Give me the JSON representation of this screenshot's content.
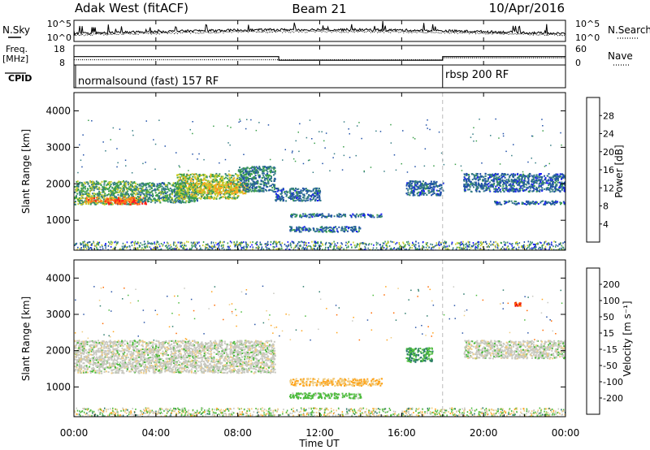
{
  "header": {
    "title": "Adak West (fitACF)",
    "beam": "Beam 21",
    "date": "10/Apr/2016"
  },
  "nsky_panel": {
    "left_label": "N.Sky",
    "right_label": "N.Search",
    "left_ticks": [
      "10^5",
      "10^0"
    ],
    "right_ticks": [
      "10^5",
      "10^0"
    ]
  },
  "freq_panel": {
    "left_label_1": "Freq.",
    "left_label_2": "[MHz]",
    "right_label": "Nave",
    "left_ticks": [
      "18",
      "8"
    ],
    "right_ticks": [
      "60",
      "0"
    ],
    "freq_steps": [
      {
        "t0": 0,
        "t1": 10,
        "value": 12.3
      },
      {
        "t0": 10,
        "t1": 18,
        "value": 10.4
      },
      {
        "t0": 18,
        "t1": 24,
        "value": 12.3
      }
    ],
    "nave_steps": [
      {
        "t0": 0,
        "t1": 18,
        "value": 16
      },
      {
        "t0": 18,
        "t1": 24,
        "value": 22
      }
    ]
  },
  "cpid_panel": {
    "label": "CPID",
    "segments": [
      {
        "start_hour": 0,
        "text": "normalsound (fast) 157 RF"
      },
      {
        "start_hour": 18,
        "text": "rbsp 200 RF"
      }
    ]
  },
  "power_panel": {
    "ylabel": "Slant Range [km]",
    "yticks": [
      1000,
      2000,
      3000,
      4000
    ],
    "cbar_label": "Power [dB]",
    "cbar_ticks": [
      "4",
      "8",
      "12",
      "16",
      "20",
      "24",
      "28"
    ],
    "cbar_colors": [
      "#1a1aff",
      "#1f4fa8",
      "#357d84",
      "#3b9f4a",
      "#c8cc2a",
      "#ffa51f",
      "#ff6f1a",
      "#ff1a1a"
    ]
  },
  "velocity_panel": {
    "ylabel": "Slant Range [km]",
    "yticks": [
      1000,
      2000,
      3000,
      4000
    ],
    "cbar_label": "Velocity [m s⁻¹]",
    "cbar_ticks": [
      "-200",
      "-100",
      "-50",
      "-15",
      "15",
      "50",
      "100",
      "200"
    ],
    "cbar_colors": [
      "#e60000",
      "#ff6a00",
      "#ffa31a",
      "#f0cc80",
      "#c8c8c0",
      "#4cbb3c",
      "#2a7a6a",
      "#2a55a8",
      "#2233bb"
    ]
  },
  "x_axis": {
    "label": "Time UT",
    "ticks": [
      "00:00",
      "04:00",
      "08:00",
      "12:00",
      "16:00",
      "20:00",
      "00:00"
    ]
  },
  "chart_data": {
    "type": "heatmap",
    "x_range_hours": [
      0,
      24
    ],
    "y_range_km": [
      180,
      4500
    ],
    "power_blobs": [
      {
        "t0": 0,
        "t1": 3,
        "r0": 1450,
        "r1": 2100,
        "value": 14
      },
      {
        "t0": 0.5,
        "t1": 3.5,
        "r0": 1500,
        "r1": 1650,
        "value": 24
      },
      {
        "t0": 1.5,
        "t1": 3.5,
        "r0": 1450,
        "r1": 1580,
        "value": 28
      },
      {
        "t0": 3,
        "t1": 6,
        "r0": 1500,
        "r1": 2050,
        "value": 12
      },
      {
        "t0": 5,
        "t1": 8,
        "r0": 1600,
        "r1": 2300,
        "value": 16
      },
      {
        "t0": 6,
        "t1": 8.5,
        "r0": 1750,
        "r1": 2050,
        "value": 20
      },
      {
        "t0": 8,
        "t1": 9.8,
        "r0": 1800,
        "r1": 2500,
        "value": 10
      },
      {
        "t0": 9.8,
        "t1": 12,
        "r0": 1550,
        "r1": 1900,
        "value": 8
      },
      {
        "t0": 10.5,
        "t1": 15,
        "r0": 1100,
        "r1": 1200,
        "value": 8
      },
      {
        "t0": 10.5,
        "t1": 14,
        "r0": 700,
        "r1": 850,
        "value": 8
      },
      {
        "t0": 16.2,
        "t1": 18,
        "r0": 1700,
        "r1": 2100,
        "value": 8
      },
      {
        "t0": 19,
        "t1": 24,
        "r0": 1800,
        "r1": 2300,
        "value": 8
      },
      {
        "t0": 20.5,
        "t1": 24,
        "r0": 1450,
        "r1": 1550,
        "value": 8
      }
    ],
    "velocity_blobs": [
      {
        "t0": 0,
        "t1": 9.8,
        "r0": 1400,
        "r1": 2300,
        "value": 0
      },
      {
        "t0": 10.5,
        "t1": 15,
        "r0": 1050,
        "r1": 1250,
        "value": -50
      },
      {
        "t0": 10.5,
        "t1": 14,
        "r0": 700,
        "r1": 850,
        "value": 30
      },
      {
        "t0": 16.2,
        "t1": 17.5,
        "r0": 1700,
        "r1": 2100,
        "value": 50
      },
      {
        "t0": 19,
        "t1": 24,
        "r0": 1800,
        "r1": 2300,
        "value": 0
      },
      {
        "t0": 21.5,
        "t1": 21.8,
        "r0": 3250,
        "r1": 3350,
        "value": -200
      }
    ]
  }
}
